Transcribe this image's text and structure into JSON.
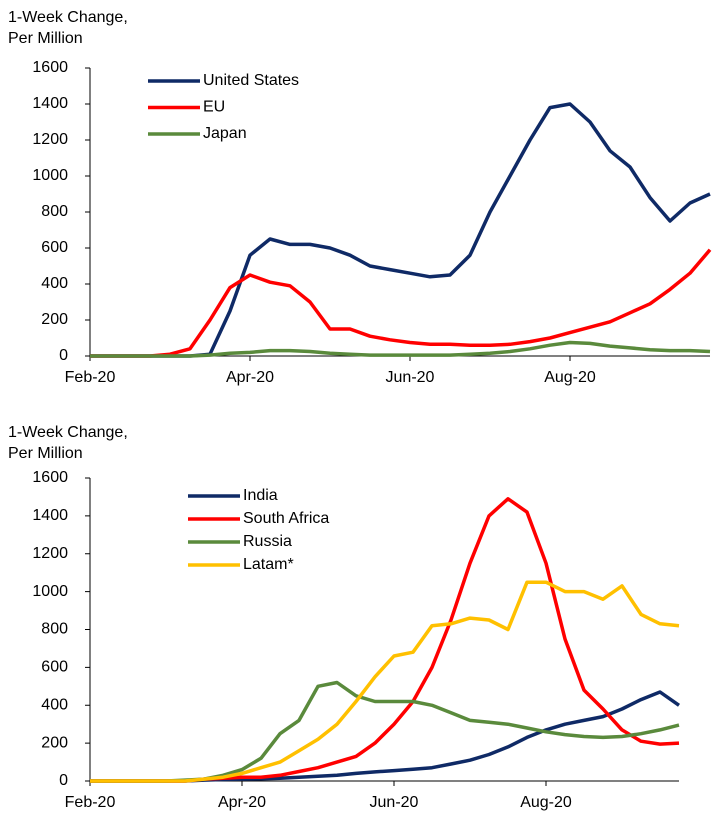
{
  "chart_data": [
    {
      "type": "line",
      "y_label": [
        "1-Week Change,",
        "Per Million"
      ],
      "categories": [
        "Feb-20",
        null,
        null,
        null,
        null,
        null,
        null,
        null,
        "Apr-20",
        null,
        null,
        null,
        null,
        null,
        null,
        null,
        "Jun-20",
        null,
        null,
        null,
        null,
        null,
        null,
        null,
        "Aug-20",
        null,
        null,
        null,
        null,
        null,
        null,
        null
      ],
      "ylim": [
        0,
        1600
      ],
      "yticks": [
        0,
        200,
        400,
        600,
        800,
        1000,
        1200,
        1400,
        1600
      ],
      "legend": "upper left",
      "series": [
        {
          "name": "United States",
          "color": "#0f2a66",
          "values": [
            0,
            0,
            0,
            0,
            0,
            0,
            10,
            250,
            560,
            650,
            620,
            620,
            600,
            560,
            500,
            480,
            460,
            440,
            450,
            560,
            800,
            1000,
            1200,
            1380,
            1400,
            1300,
            1140,
            1050,
            880,
            750,
            850,
            900
          ]
        },
        {
          "name": "EU",
          "color": "#ff0000",
          "values": [
            0,
            0,
            0,
            0,
            10,
            40,
            200,
            380,
            450,
            410,
            390,
            300,
            150,
            150,
            110,
            90,
            75,
            65,
            65,
            60,
            60,
            65,
            80,
            100,
            130,
            160,
            190,
            240,
            290,
            370,
            460,
            590
          ]
        },
        {
          "name": "Japan",
          "color": "#5a8a3c",
          "values": [
            0,
            0,
            0,
            0,
            0,
            0,
            5,
            15,
            20,
            30,
            30,
            25,
            15,
            10,
            5,
            5,
            5,
            5,
            5,
            10,
            15,
            25,
            40,
            60,
            75,
            70,
            55,
            45,
            35,
            30,
            30,
            25
          ]
        }
      ]
    },
    {
      "type": "line",
      "y_label": [
        "1-Week Change,",
        "Per Million"
      ],
      "categories": [
        "Feb-20",
        null,
        null,
        null,
        null,
        null,
        null,
        null,
        "Apr-20",
        null,
        null,
        null,
        null,
        null,
        null,
        null,
        "Jun-20",
        null,
        null,
        null,
        null,
        null,
        null,
        null,
        "Aug-20",
        null,
        null,
        null,
        null,
        null,
        null,
        null
      ],
      "ylim": [
        0,
        1600
      ],
      "yticks": [
        0,
        200,
        400,
        600,
        800,
        1000,
        1200,
        1400,
        1600
      ],
      "legend": "upper left",
      "series": [
        {
          "name": "India",
          "color": "#0f2a66",
          "values": [
            0,
            0,
            0,
            0,
            0,
            0,
            5,
            8,
            10,
            12,
            15,
            20,
            25,
            30,
            40,
            48,
            55,
            62,
            70,
            90,
            110,
            140,
            180,
            230,
            270,
            300,
            320,
            340,
            380,
            430,
            470,
            400
          ]
        },
        {
          "name": "South Africa",
          "color": "#ff0000",
          "values": [
            0,
            0,
            0,
            0,
            0,
            0,
            10,
            15,
            20,
            20,
            30,
            50,
            70,
            100,
            130,
            200,
            300,
            420,
            600,
            850,
            1150,
            1400,
            1490,
            1420,
            1150,
            750,
            480,
            380,
            270,
            210,
            195,
            200
          ]
        },
        {
          "name": "Russia",
          "color": "#5a8a3c",
          "values": [
            0,
            0,
            0,
            0,
            0,
            5,
            10,
            30,
            60,
            120,
            250,
            320,
            500,
            520,
            450,
            420,
            420,
            420,
            400,
            360,
            320,
            310,
            300,
            280,
            260,
            245,
            235,
            230,
            235,
            250,
            270,
            295
          ]
        },
        {
          "name": "Latam*",
          "color": "#ffc000",
          "values": [
            0,
            0,
            0,
            0,
            0,
            0,
            10,
            20,
            40,
            70,
            100,
            160,
            220,
            300,
            420,
            550,
            660,
            680,
            820,
            830,
            860,
            850,
            800,
            1050,
            1050,
            1000,
            1000,
            960,
            1030,
            880,
            830,
            820
          ]
        }
      ]
    }
  ]
}
